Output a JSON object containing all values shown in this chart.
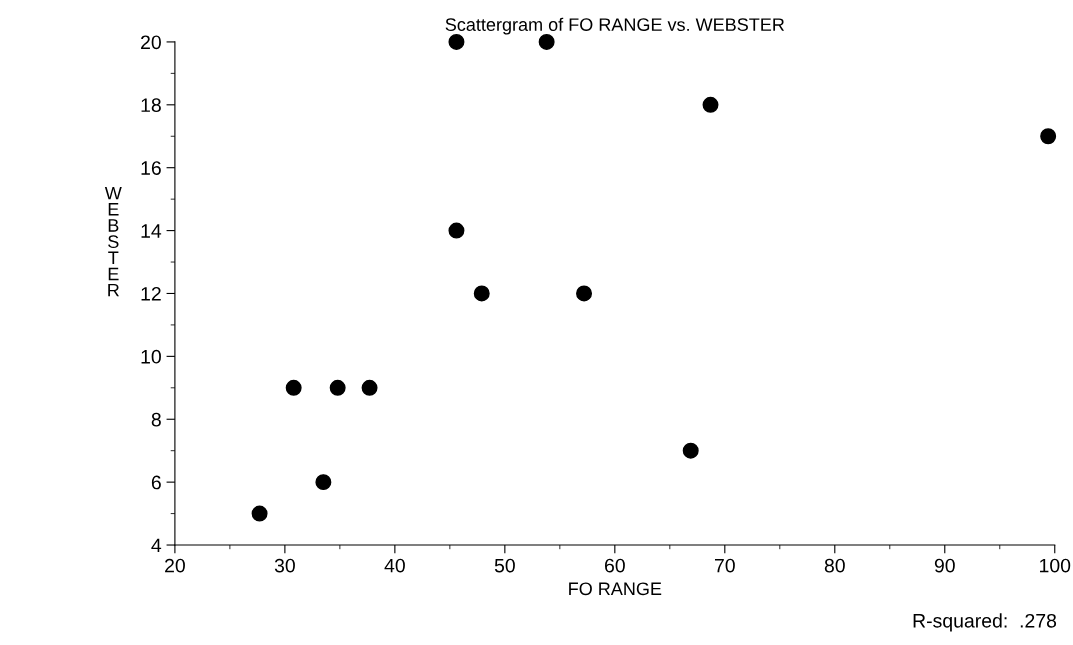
{
  "chart_data": {
    "type": "scatter",
    "title": "Scattergram of FO RANGE vs. WEBSTER",
    "xlabel": "FO RANGE",
    "ylabel": "WEBSTER",
    "x": [
      27.7,
      30.8,
      33.5,
      34.8,
      37.7,
      45.6,
      45.6,
      47.9,
      53.8,
      57.2,
      66.9,
      68.7,
      99.4
    ],
    "values": [
      5,
      9,
      6,
      9,
      9,
      20,
      14,
      12,
      20,
      12,
      7,
      18,
      17
    ],
    "color": "#000000",
    "marker": "circle",
    "grid": false,
    "xlim": [
      20,
      100
    ],
    "xticks": [
      20,
      30,
      40,
      50,
      60,
      70,
      80,
      90,
      100
    ],
    "ylim": [
      4,
      20
    ],
    "yticks": [
      4,
      6,
      8,
      10,
      12,
      14,
      16,
      18,
      20
    ],
    "annotations": [
      "R-squared:  .278"
    ]
  }
}
